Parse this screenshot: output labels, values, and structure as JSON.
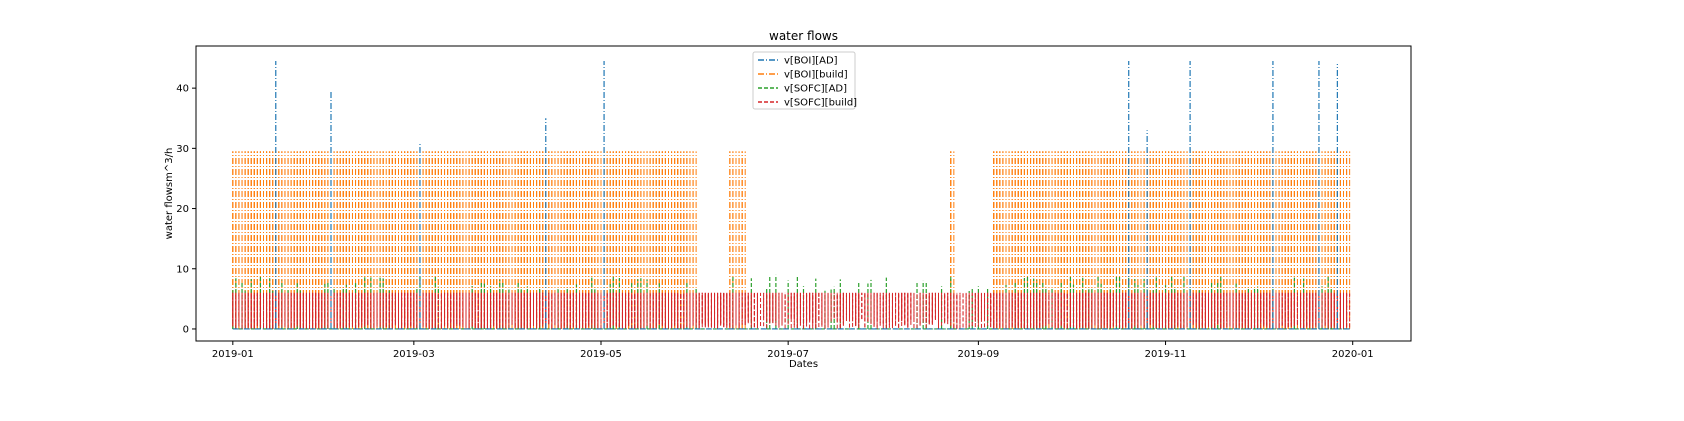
{
  "chart_data": {
    "type": "line",
    "title": "water flows",
    "xlabel": "Dates",
    "ylabel": "water flowsm^3/h",
    "x_range": [
      "2019-01-01",
      "2019-12-31"
    ],
    "xlim": [
      "2018-12-20",
      "2020-01-20"
    ],
    "ylim": [
      -2,
      47
    ],
    "x_ticks": [
      "2019-01",
      "2019-03",
      "2019-05",
      "2019-07",
      "2019-09",
      "2019-11",
      "2020-01"
    ],
    "y_ticks": [
      0,
      10,
      20,
      30,
      40
    ],
    "grid": false,
    "legend_position": "upper center",
    "series": [
      {
        "name": "v[BOI][AD]",
        "color": "#1f77b4",
        "linestyle": "dashdot",
        "typical_value": 0,
        "peaks": [
          {
            "x": "2019-01-15",
            "y": 44.5
          },
          {
            "x": "2019-02-02",
            "y": 39.5
          },
          {
            "x": "2019-03-03",
            "y": 31
          },
          {
            "x": "2019-04-13",
            "y": 35
          },
          {
            "x": "2019-05-02",
            "y": 44.5
          },
          {
            "x": "2019-10-20",
            "y": 44.5
          },
          {
            "x": "2019-10-26",
            "y": 33
          },
          {
            "x": "2019-11-09",
            "y": 44.5
          },
          {
            "x": "2019-12-06",
            "y": 44.5
          },
          {
            "x": "2019-12-21",
            "y": 44.5
          },
          {
            "x": "2019-12-27",
            "y": 44
          }
        ]
      },
      {
        "name": "v[BOI][build]",
        "color": "#ff7f0e",
        "linestyle": "dashdot",
        "max_value": 29.5,
        "active_periods": [
          [
            "2019-01-01",
            "2019-06-01"
          ],
          [
            "2019-06-12",
            "2019-06-17"
          ],
          [
            "2019-08-23",
            "2019-08-24"
          ],
          [
            "2019-09-06",
            "2019-12-31"
          ]
        ]
      },
      {
        "name": "v[SOFC][AD]",
        "color": "#2ca02c",
        "linestyle": "dashed",
        "max_value": 9,
        "typical_value": 0
      },
      {
        "name": "v[SOFC][build]",
        "color": "#d62728",
        "linestyle": "dashed",
        "max_value": 6,
        "min_value": 0,
        "active_period": [
          "2019-01-01",
          "2019-12-31"
        ]
      }
    ]
  }
}
